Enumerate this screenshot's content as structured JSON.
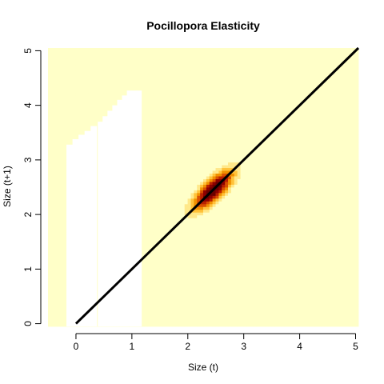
{
  "chart_data": {
    "type": "heatmap",
    "title": "Pocillopora Elasticity",
    "xlabel": "Size (t)",
    "ylabel": "Size (t+1)",
    "xlim": [
      -0.5,
      5.05
    ],
    "ylim": [
      -0.05,
      5.05
    ],
    "x_ticks": [
      0,
      1,
      2,
      3,
      4,
      5
    ],
    "y_ticks": [
      0,
      1,
      2,
      3,
      4,
      5
    ],
    "x_tick_labels": [
      "0",
      "1",
      "2",
      "3",
      "4",
      "5"
    ],
    "y_tick_labels": [
      "0",
      "1",
      "2",
      "3",
      "4",
      "5"
    ],
    "background_color": "#FFFFC8",
    "empty_color": "#FFFFFF",
    "color_scale": [
      "#FFFFC8",
      "#FFE88A",
      "#FFC23A",
      "#F09000",
      "#D85000",
      "#B82000",
      "#8E0000",
      "#6A0000"
    ],
    "elasticity_peak": {
      "x": 2.45,
      "y": 2.45,
      "sd_major": 0.33,
      "sd_minor": 0.12,
      "angle_deg": 45
    },
    "blank_regions": [
      {
        "x_start": -0.17,
        "x_end": 0.37,
        "top": [
          3.28,
          3.38,
          3.46,
          3.53,
          3.62
        ]
      },
      {
        "x_start": 0.39,
        "x_end": 1.17,
        "top": [
          3.7,
          3.8,
          3.9,
          4.0,
          4.1,
          4.18,
          4.27,
          4.27,
          4.27
        ]
      }
    ],
    "line": {
      "x": [
        0,
        5.05
      ],
      "y": [
        0,
        5.05
      ],
      "color": "#000000"
    },
    "grid": false,
    "legend": "none"
  }
}
